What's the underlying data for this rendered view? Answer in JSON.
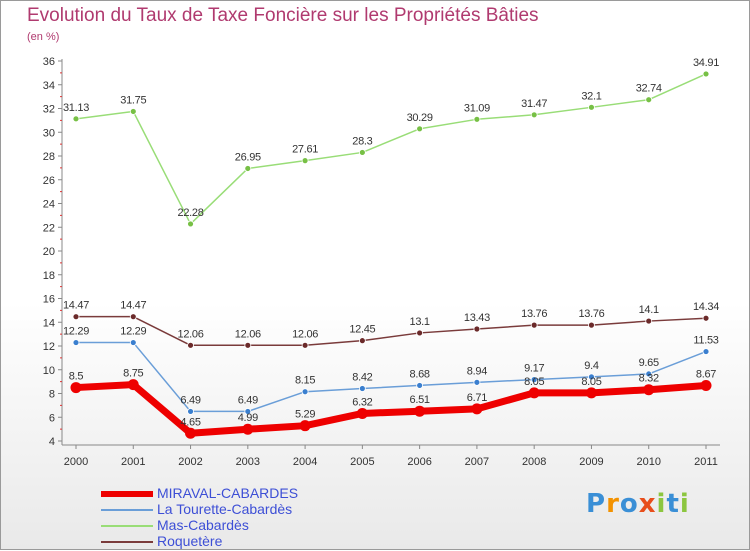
{
  "title": "Evolution du Taux de Taxe Foncière sur les Propriétés Bâties",
  "unit": "(en %)",
  "logo": [
    "P",
    "r",
    "o",
    "x",
    "i",
    "t",
    "i"
  ],
  "logo_colors": [
    "#3a8fd6",
    "#f39200",
    "#3a8fd6",
    "#e84e1b",
    "#8cc63f",
    "#3a8fd6",
    "#8cc63f"
  ],
  "chart_data": {
    "type": "line",
    "title": "Evolution du Taux de Taxe Foncière sur les Propriétés Bâties",
    "ylabel": "(en %)",
    "xlabel": "",
    "categories": [
      "2000",
      "2001",
      "2002",
      "2003",
      "2004",
      "2005",
      "2006",
      "2007",
      "2008",
      "2009",
      "2010",
      "2011"
    ],
    "ylim": [
      4,
      36
    ],
    "yticks": [
      "4",
      "6",
      "8",
      "10",
      "12",
      "14",
      "16",
      "18",
      "20",
      "22",
      "24",
      "26",
      "28",
      "30",
      "32",
      "34",
      "36"
    ],
    "grid": false,
    "series": [
      {
        "name": "Mas-Cabardès",
        "color": "#99dd77",
        "marker": "#77c045",
        "width": 1.5,
        "values": [
          31.13,
          31.75,
          22.28,
          26.95,
          27.61,
          28.3,
          30.29,
          31.09,
          31.47,
          32.1,
          32.74,
          34.91
        ],
        "labels": [
          "31.13",
          "31.75",
          "22.28",
          "26.95",
          "27.61",
          "28.3",
          "30.29",
          "31.09",
          "31.47",
          "32.1",
          "32.74",
          "34.91"
        ]
      },
      {
        "name": "Roquetère",
        "color": "#7a3b3b",
        "marker": "#6b2a2a",
        "width": 1.5,
        "values": [
          14.47,
          14.47,
          12.06,
          12.06,
          12.06,
          12.45,
          13.1,
          13.43,
          13.76,
          13.76,
          14.1,
          14.34
        ],
        "labels": [
          "14.47",
          "14.47",
          "12.06",
          "12.06",
          "12.06",
          "12.45",
          "13.1",
          "13.43",
          "13.76",
          "13.76",
          "14.1",
          "14.34"
        ]
      },
      {
        "name": "La Tourette-Cabardès",
        "color": "#6a9ed8",
        "marker": "#3a7fcf",
        "width": 1.5,
        "values": [
          12.29,
          12.29,
          6.49,
          6.49,
          8.15,
          8.42,
          8.68,
          8.94,
          9.17,
          9.4,
          9.65,
          11.53
        ],
        "labels": [
          "12.29",
          "12.29",
          "6.49",
          "6.49",
          "8.15",
          "8.42",
          "8.68",
          "8.94",
          "9.17",
          "9.4",
          "9.65",
          "11.53"
        ]
      },
      {
        "name": "MIRAVAL-CABARDES",
        "color": "#ee0000",
        "marker": "#ee0000",
        "width": 7,
        "values": [
          8.5,
          8.75,
          4.65,
          4.99,
          5.29,
          6.32,
          6.51,
          6.71,
          8.05,
          8.05,
          8.32,
          8.67
        ],
        "labels": [
          "8.5",
          "8.75",
          "4.65",
          "4.99",
          "5.29",
          "6.32",
          "6.51",
          "6.71",
          "8.05",
          "8.05",
          "8.32",
          "8.67"
        ]
      }
    ]
  },
  "legend": [
    {
      "label": "MIRAVAL-CABARDES",
      "color": "#ee0000"
    },
    {
      "label": "La Tourette-Cabardès",
      "color": "#6a9ed8"
    },
    {
      "label": "Mas-Cabardès",
      "color": "#99dd77"
    },
    {
      "label": "Roquetère",
      "color": "#7a3b3b"
    }
  ]
}
